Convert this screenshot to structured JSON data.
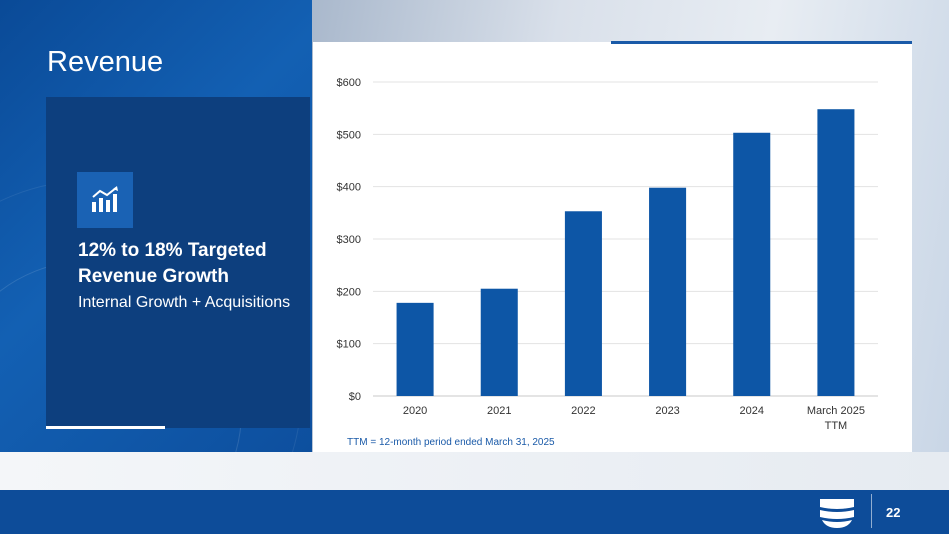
{
  "slide": {
    "title": "Revenue",
    "page_number": "22"
  },
  "side_panel": {
    "icon": "bar-chart-trend-icon",
    "heading": "12% to 18% Targeted Revenue Growth",
    "subheading": "Internal Growth + Acquisitions"
  },
  "footnote": "TTM = 12-month period ended March 31, 2025",
  "colors": {
    "bar": "#0d56a6",
    "panel": "#0d3f7e",
    "footer": "#0d4c99",
    "accent": "#1a5aa8"
  },
  "chart_data": {
    "type": "bar",
    "categories": [
      "2020",
      "2021",
      "2022",
      "2023",
      "2024",
      "March 2025 TTM"
    ],
    "values": [
      178,
      205,
      353,
      398,
      503,
      548
    ],
    "ylim": [
      0,
      600
    ],
    "yticks": [
      0,
      100,
      200,
      300,
      400,
      500,
      600
    ],
    "ytick_labels": [
      "$0",
      "$100",
      "$200",
      "$300",
      "$400",
      "$500",
      "$600"
    ],
    "title": "",
    "xlabel": "",
    "ylabel": "",
    "grid": true,
    "legend": "none"
  }
}
